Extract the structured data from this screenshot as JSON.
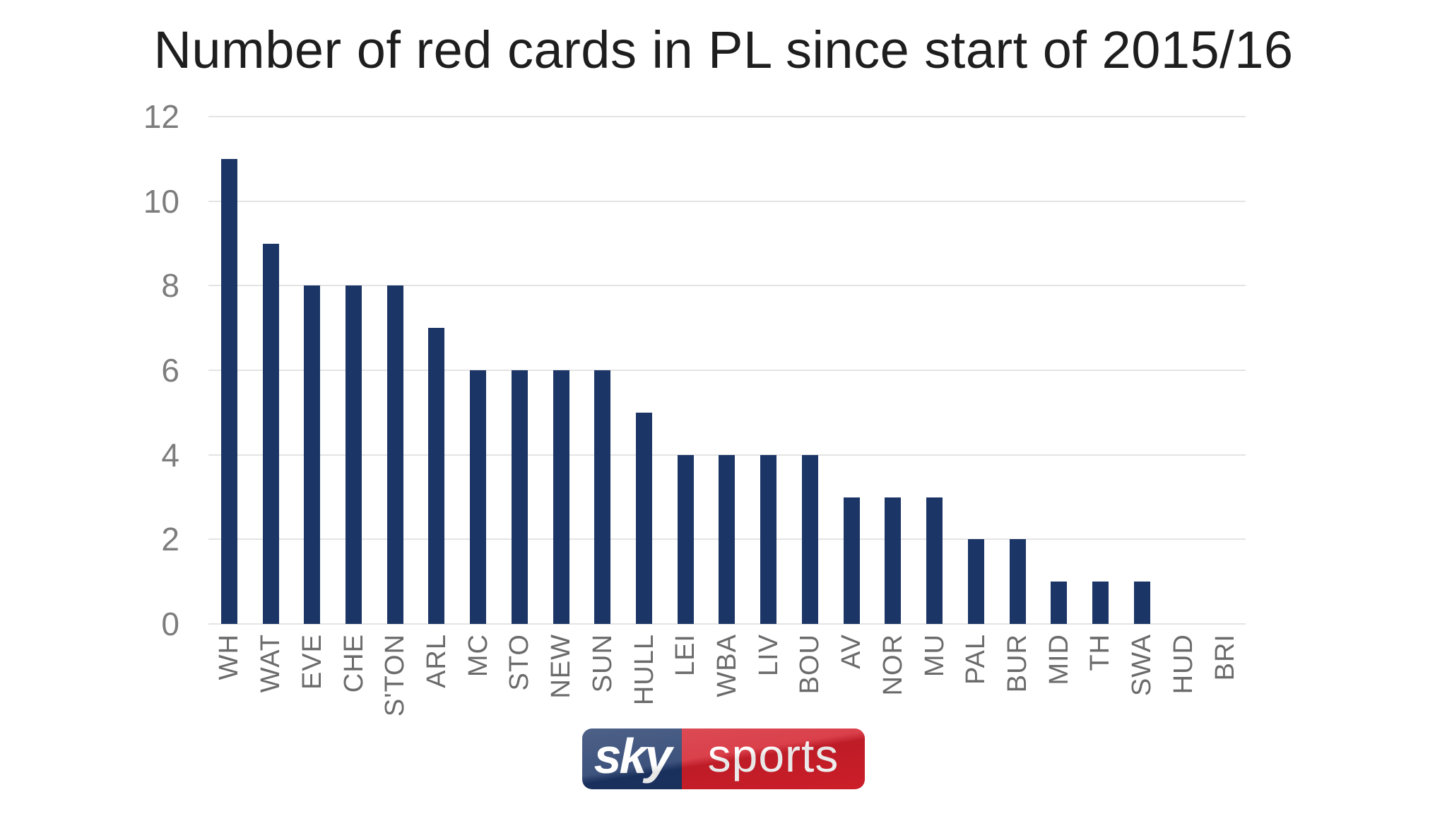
{
  "chart_data": {
    "type": "bar",
    "title": "Number of red cards in PL since start of 2015/16",
    "categories": [
      "WH",
      "WAT",
      "EVE",
      "CHE",
      "S'TON",
      "ARL",
      "MC",
      "STO",
      "NEW",
      "SUN",
      "HULL",
      "LEI",
      "WBA",
      "LIV",
      "BOU",
      "AV",
      "NOR",
      "MU",
      "PAL",
      "BUR",
      "MID",
      "TH",
      "SWA",
      "HUD",
      "BRI"
    ],
    "values": [
      11,
      9,
      8,
      8,
      8,
      7,
      6,
      6,
      6,
      6,
      5,
      4,
      4,
      4,
      4,
      3,
      3,
      3,
      2,
      2,
      1,
      1,
      1,
      0,
      0
    ],
    "xlabel": "",
    "ylabel": "",
    "ylim": [
      0,
      12
    ],
    "yticks": [
      0,
      2,
      4,
      6,
      8,
      10,
      12
    ],
    "grid": true,
    "legend": "none",
    "bar_color": "#1b3566",
    "gridline_color": "#e4e4e4",
    "title_color": "#1e1e1e",
    "ytick_color": "#7d7d7d",
    "xtick_color": "#6b6b6b"
  },
  "branding": {
    "sky_label": "sky",
    "sports_label": "sports",
    "sky_bg": "#1c3566",
    "sports_bg": "#d31f2b",
    "text_color": "#ffffff"
  }
}
